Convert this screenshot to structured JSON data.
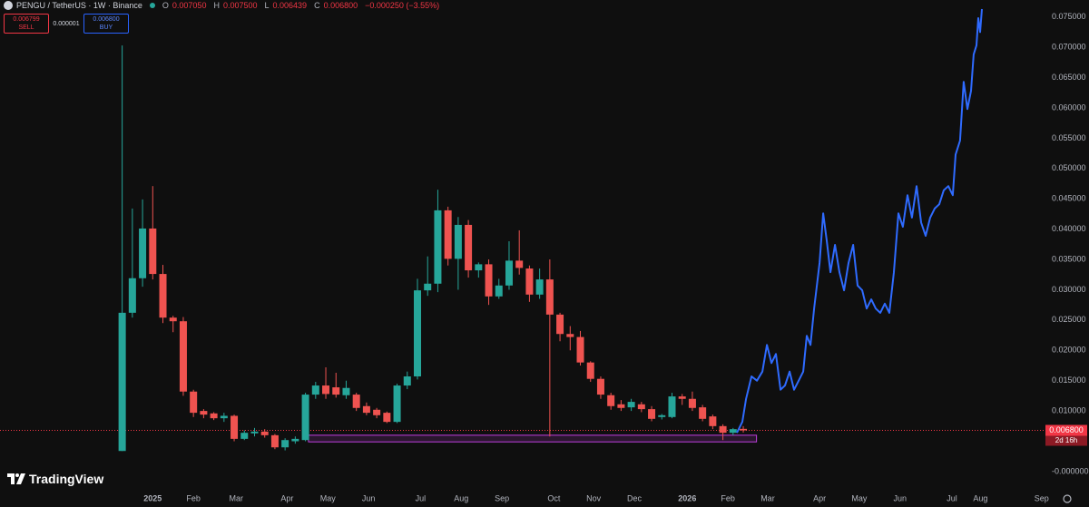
{
  "header": {
    "symbol": "PENGU / TetherUS · 1W · Binance",
    "ohlc": [
      {
        "key": "O",
        "value": "0.007050"
      },
      {
        "key": "H",
        "value": "0.007500"
      },
      {
        "key": "L",
        "value": "0.006439"
      },
      {
        "key": "C",
        "value": "0.006800"
      }
    ],
    "change": "−0.000250 (−3.55%)"
  },
  "trade": {
    "sell_price": "0.006799",
    "sell_label": "SELL",
    "spread": "0.000001",
    "buy_price": "0.006800",
    "buy_label": "BUY"
  },
  "logo": "TradingView",
  "chart_data": {
    "type": "candlestick",
    "up_color": "#26a69a",
    "down_color": "#ef5350",
    "x": [
      0,
      1,
      2,
      3,
      4,
      5,
      6,
      7,
      8,
      9,
      10,
      11,
      12,
      13,
      14,
      15,
      16,
      17,
      18,
      19,
      20,
      21,
      22,
      23,
      24,
      25,
      26,
      27,
      28,
      29,
      30,
      31,
      32,
      33,
      34,
      35,
      36,
      37,
      38,
      39,
      40,
      41,
      42,
      43,
      44,
      45,
      46,
      47,
      48,
      49,
      50,
      51,
      52,
      53,
      54,
      55,
      56,
      57,
      58,
      59,
      60,
      61
    ],
    "open": [
      0.0034,
      0.0262,
      0.0319,
      0.0401,
      0.0326,
      0.0254,
      0.0248,
      0.0132,
      0.01,
      0.0096,
      0.0088,
      0.0092,
      0.0054,
      0.0063,
      0.0066,
      0.006,
      0.004,
      0.005,
      0.0052,
      0.0127,
      0.0142,
      0.0139,
      0.0126,
      0.0127,
      0.0108,
      0.0102,
      0.0097,
      0.0082,
      0.0142,
      0.0157,
      0.0299,
      0.031,
      0.0431,
      0.0351,
      0.0407,
      0.0332,
      0.0342,
      0.0289,
      0.0307,
      0.0348,
      0.0335,
      0.0292,
      0.0317,
      0.0259,
      0.0227,
      0.0222,
      0.018,
      0.0153,
      0.0126,
      0.0111,
      0.0106,
      0.0111,
      0.0103,
      0.009,
      0.009,
      0.0124,
      0.012,
      0.0106,
      0.0091,
      0.0075,
      0.0064,
      0.00705
    ],
    "high": [
      0.0703,
      0.0434,
      0.0449,
      0.0471,
      0.0341,
      0.0257,
      0.0255,
      0.0135,
      0.0103,
      0.0098,
      0.0097,
      0.0094,
      0.0068,
      0.0072,
      0.007,
      0.0062,
      0.0055,
      0.0058,
      0.013,
      0.0148,
      0.0172,
      0.0163,
      0.015,
      0.013,
      0.0114,
      0.0105,
      0.0099,
      0.0145,
      0.0165,
      0.0318,
      0.0355,
      0.0465,
      0.0437,
      0.042,
      0.0415,
      0.0345,
      0.035,
      0.0318,
      0.038,
      0.0398,
      0.034,
      0.0335,
      0.035,
      0.0262,
      0.024,
      0.0232,
      0.0182,
      0.0157,
      0.013,
      0.0118,
      0.012,
      0.0115,
      0.0108,
      0.0095,
      0.013,
      0.0128,
      0.0132,
      0.011,
      0.0094,
      0.0078,
      0.0072,
      0.0075
    ],
    "low": [
      0.0034,
      0.0254,
      0.0305,
      0.0317,
      0.0245,
      0.023,
      0.0125,
      0.009,
      0.0088,
      0.0085,
      0.0082,
      0.005,
      0.0052,
      0.0058,
      0.0056,
      0.0037,
      0.0035,
      0.0046,
      0.005,
      0.012,
      0.012,
      0.0122,
      0.012,
      0.01,
      0.0093,
      0.0088,
      0.008,
      0.008,
      0.0136,
      0.0152,
      0.029,
      0.0296,
      0.034,
      0.03,
      0.032,
      0.032,
      0.0275,
      0.0285,
      0.03,
      0.0325,
      0.028,
      0.0285,
      0.0058,
      0.0215,
      0.02,
      0.0175,
      0.0148,
      0.012,
      0.0102,
      0.01,
      0.01,
      0.0098,
      0.0083,
      0.0086,
      0.0088,
      0.011,
      0.01,
      0.0083,
      0.007,
      0.0052,
      0.006,
      0.006439
    ],
    "close": [
      0.0262,
      0.0319,
      0.0401,
      0.0326,
      0.0254,
      0.0248,
      0.0132,
      0.0097,
      0.0094,
      0.0088,
      0.0092,
      0.0054,
      0.0064,
      0.0066,
      0.006,
      0.004,
      0.0052,
      0.0054,
      0.0127,
      0.0142,
      0.0128,
      0.0127,
      0.0138,
      0.0105,
      0.0097,
      0.0093,
      0.0082,
      0.0142,
      0.0157,
      0.0299,
      0.031,
      0.0431,
      0.0351,
      0.0407,
      0.0332,
      0.0342,
      0.0289,
      0.0307,
      0.0348,
      0.0336,
      0.0292,
      0.0317,
      0.0259,
      0.0227,
      0.0222,
      0.018,
      0.0153,
      0.0127,
      0.0108,
      0.0105,
      0.0115,
      0.0103,
      0.0087,
      0.0093,
      0.0124,
      0.012,
      0.0105,
      0.0087,
      0.0075,
      0.0064,
      0.007,
      0.0068
    ],
    "projection": {
      "type": "line",
      "color": "#2f6bff",
      "x": [
        60.37,
        60.91,
        61.27,
        61.81,
        62.34,
        62.88,
        63.32,
        63.77,
        64.21,
        64.66,
        65.1,
        65.55,
        65.99,
        66.44,
        66.89,
        67.24,
        67.6,
        67.96,
        68.49,
        68.85,
        69.2,
        69.56,
        70.01,
        70.45,
        70.9,
        71.34,
        71.79,
        72.23,
        72.68,
        73.12,
        73.57,
        74.01,
        74.46,
        74.9,
        75.35,
        75.79,
        76.24,
        76.68,
        77.13,
        77.57,
        78.02,
        78.47,
        78.91,
        79.36,
        79.8,
        80.25,
        80.69,
        81.14,
        81.58,
        81.85,
        82.29,
        82.65,
        83.01,
        83.37,
        83.63,
        83.9,
        84.08,
        84.26,
        84.44
      ],
      "values": [
        0.0064,
        0.0082,
        0.012,
        0.0157,
        0.015,
        0.0165,
        0.0209,
        0.0179,
        0.0194,
        0.0135,
        0.0142,
        0.0165,
        0.0135,
        0.015,
        0.0165,
        0.0224,
        0.0209,
        0.0269,
        0.0344,
        0.0426,
        0.0381,
        0.0329,
        0.0374,
        0.0329,
        0.0299,
        0.0344,
        0.0374,
        0.0307,
        0.0299,
        0.0269,
        0.0284,
        0.0269,
        0.0262,
        0.0277,
        0.0262,
        0.0329,
        0.0426,
        0.0404,
        0.0456,
        0.0419,
        0.0471,
        0.0411,
        0.0389,
        0.0419,
        0.0434,
        0.0441,
        0.0464,
        0.0471,
        0.0456,
        0.0523,
        0.0546,
        0.0643,
        0.0598,
        0.0628,
        0.0688,
        0.0703,
        0.0748,
        0.0725,
        0.0763
      ]
    },
    "zone": {
      "color": "#c040e0",
      "x": [
        18.3,
        62.3
      ],
      "y": [
        0.0049,
        0.006
      ]
    },
    "last_price": {
      "value": 0.0068,
      "label": "0.006800",
      "color": "#f23645"
    },
    "countdown": "2d 16h",
    "xlim": [
      -12,
      90.5
    ],
    "xticks": [
      {
        "value": 3.0,
        "label": "2025"
      },
      {
        "value": 7.0,
        "label": "Feb"
      },
      {
        "value": 11.2,
        "label": "Mar"
      },
      {
        "value": 16.2,
        "label": "Apr"
      },
      {
        "value": 20.2,
        "label": "May"
      },
      {
        "value": 24.2,
        "label": "Jun"
      },
      {
        "value": 29.3,
        "label": "Jul"
      },
      {
        "value": 33.3,
        "label": "Aug"
      },
      {
        "value": 37.3,
        "label": "Sep"
      },
      {
        "value": 42.4,
        "label": "Oct"
      },
      {
        "value": 46.3,
        "label": "Nov"
      },
      {
        "value": 50.3,
        "label": "Dec"
      },
      {
        "value": 55.5,
        "label": "2026"
      },
      {
        "value": 59.5,
        "label": "Feb"
      },
      {
        "value": 63.4,
        "label": "Mar"
      },
      {
        "value": 68.5,
        "label": "Apr"
      },
      {
        "value": 72.4,
        "label": "May"
      },
      {
        "value": 76.4,
        "label": "Jun"
      },
      {
        "value": 81.5,
        "label": "Jul"
      },
      {
        "value": 84.3,
        "label": "Aug"
      },
      {
        "value": 90.3,
        "label": "Sep"
      }
    ],
    "ylim": [
      -0.003,
      0.0778
    ],
    "yticks": [
      {
        "value": 0.075,
        "label": "0.075000"
      },
      {
        "value": 0.07,
        "label": "0.070000"
      },
      {
        "value": 0.065,
        "label": "0.065000"
      },
      {
        "value": 0.06,
        "label": "0.060000"
      },
      {
        "value": 0.055,
        "label": "0.055000"
      },
      {
        "value": 0.05,
        "label": "0.050000"
      },
      {
        "value": 0.045,
        "label": "0.045000"
      },
      {
        "value": 0.04,
        "label": "0.040000"
      },
      {
        "value": 0.035,
        "label": "0.035000"
      },
      {
        "value": 0.03,
        "label": "0.030000"
      },
      {
        "value": 0.025,
        "label": "0.025000"
      },
      {
        "value": 0.02,
        "label": "0.020000"
      },
      {
        "value": 0.015,
        "label": "0.015000"
      },
      {
        "value": 0.01,
        "label": "0.010000"
      },
      {
        "value": 0,
        "label": "-0.000000"
      }
    ],
    "grid": false
  }
}
